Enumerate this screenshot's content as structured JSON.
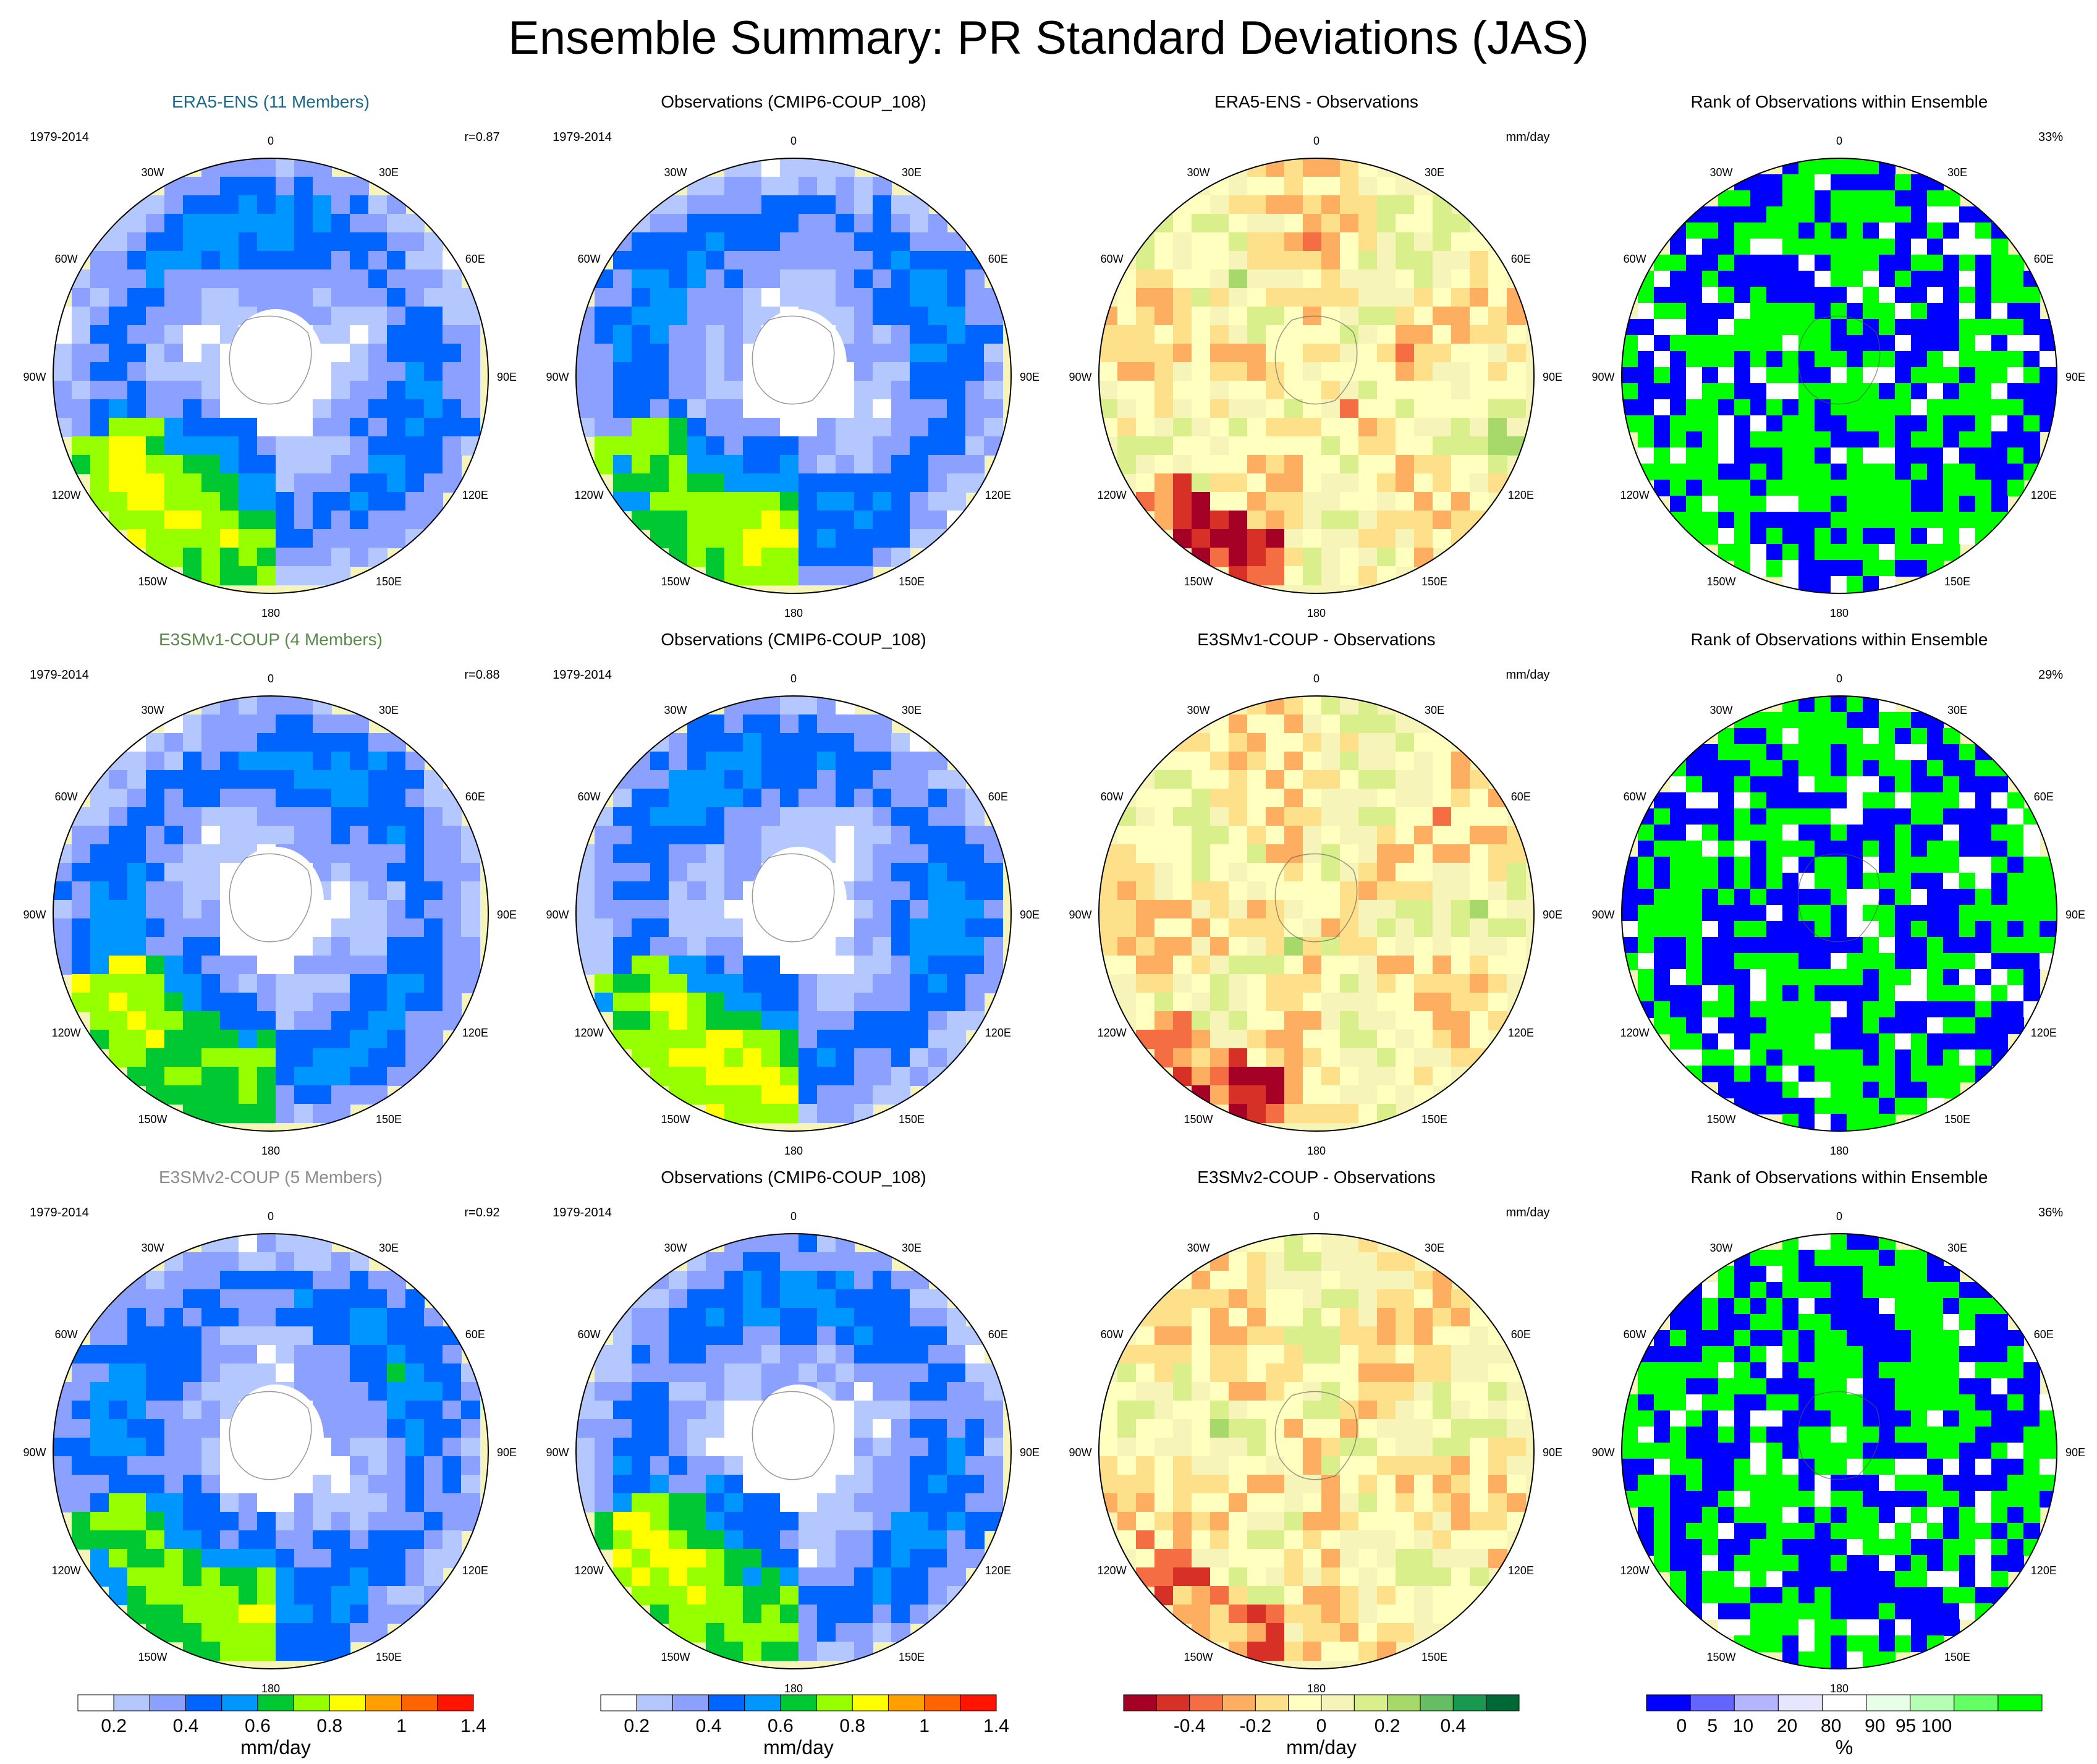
{
  "title": "Ensemble Summary: PR Standard Deviations (JAS)",
  "longitude_labels": [
    "0",
    "30E",
    "60E",
    "90E",
    "120E",
    "150E",
    "180",
    "150W",
    "120W",
    "90W",
    "60W",
    "30W"
  ],
  "colors": {
    "ensemble_header_0": "#1a6b8a",
    "ensemble_header_1": "#5a8a4a",
    "ensemble_header_2": "#8c8c8c"
  },
  "chart_data": [
    {
      "type": "heatmap",
      "row": 0,
      "col": 0,
      "title": "ERA5-ENS (11 Members)",
      "title_color": "#1a6b8a",
      "left_note": "1979-2014",
      "right_note": "r=0.87",
      "field": "std"
    },
    {
      "type": "heatmap",
      "row": 0,
      "col": 1,
      "title": "Observations (CMIP6-COUP_108)",
      "left_note": "1979-2014",
      "right_note": "",
      "field": "std"
    },
    {
      "type": "heatmap",
      "row": 0,
      "col": 2,
      "title": "ERA5-ENS - Observations",
      "left_note": "",
      "right_note": "mm/day",
      "field": "diff"
    },
    {
      "type": "heatmap",
      "row": 0,
      "col": 3,
      "title": "Rank of Observations within Ensemble",
      "left_note": "",
      "right_note": "33%",
      "field": "rank"
    },
    {
      "type": "heatmap",
      "row": 1,
      "col": 0,
      "title": "E3SMv1-COUP (4 Members)",
      "title_color": "#5a8a4a",
      "left_note": "1979-2014",
      "right_note": "r=0.88",
      "field": "std"
    },
    {
      "type": "heatmap",
      "row": 1,
      "col": 1,
      "title": "Observations (CMIP6-COUP_108)",
      "left_note": "1979-2014",
      "right_note": "",
      "field": "std"
    },
    {
      "type": "heatmap",
      "row": 1,
      "col": 2,
      "title": "E3SMv1-COUP - Observations",
      "left_note": "",
      "right_note": "mm/day",
      "field": "diff"
    },
    {
      "type": "heatmap",
      "row": 1,
      "col": 3,
      "title": "Rank of Observations within Ensemble",
      "left_note": "",
      "right_note": "29%",
      "field": "rank"
    },
    {
      "type": "heatmap",
      "row": 2,
      "col": 0,
      "title": "E3SMv2-COUP (5 Members)",
      "title_color": "#8c8c8c",
      "left_note": "1979-2014",
      "right_note": "r=0.92",
      "field": "std"
    },
    {
      "type": "heatmap",
      "row": 2,
      "col": 1,
      "title": "Observations (CMIP6-COUP_108)",
      "left_note": "1979-2014",
      "right_note": "",
      "field": "std"
    },
    {
      "type": "heatmap",
      "row": 2,
      "col": 2,
      "title": "E3SMv2-COUP - Observations",
      "left_note": "",
      "right_note": "mm/day",
      "field": "diff"
    },
    {
      "type": "heatmap",
      "row": 2,
      "col": 3,
      "title": "Rank of Observations within Ensemble",
      "left_note": "",
      "right_note": "36%",
      "field": "rank"
    }
  ],
  "colorbars": [
    {
      "col": 0,
      "label": "mm/day",
      "colors": [
        "#ffffff",
        "#b4c8ff",
        "#8ca0ff",
        "#0064ff",
        "#0096ff",
        "#00c832",
        "#96ff00",
        "#ffff00",
        "#ffa000",
        "#ff6400",
        "#ff1400"
      ],
      "ticks": [
        "0.2",
        "0.4",
        "0.6",
        "0.8",
        "1",
        "1.4"
      ],
      "tick_at": [
        1,
        3,
        5,
        7,
        9,
        11
      ]
    },
    {
      "col": 1,
      "label": "mm/day",
      "colors": [
        "#ffffff",
        "#b4c8ff",
        "#8ca0ff",
        "#0064ff",
        "#0096ff",
        "#00c832",
        "#96ff00",
        "#ffff00",
        "#ffa000",
        "#ff6400",
        "#ff1400"
      ],
      "ticks": [
        "0.2",
        "0.4",
        "0.6",
        "0.8",
        "1",
        "1.4"
      ],
      "tick_at": [
        1,
        3,
        5,
        7,
        9,
        11
      ]
    },
    {
      "col": 2,
      "label": "mm/day",
      "colors": [
        "#a50026",
        "#d73027",
        "#f46d43",
        "#fdae61",
        "#fee08b",
        "#ffffbf",
        "#f6f4b8",
        "#d9ef8b",
        "#a6d96a",
        "#66bd63",
        "#1a9850",
        "#006837"
      ],
      "ticks": [
        "-0.4",
        "-0.2",
        "0",
        "0.2",
        "0.4"
      ],
      "tick_at": [
        2,
        4,
        6,
        8,
        10
      ]
    },
    {
      "col": 3,
      "label": "%",
      "colors": [
        "#0000ff",
        "#6464ff",
        "#b4b4ff",
        "#e6e6ff",
        "#ffffff",
        "#e6ffe6",
        "#b4ffb4",
        "#64ff64",
        "#00ff00"
      ],
      "ticks": [
        "0",
        "5",
        "10",
        "20",
        "80",
        "90",
        "95",
        "100"
      ],
      "tick_at": [
        0.8,
        1.5,
        2.2,
        3.2,
        4.2,
        5.2,
        5.9,
        6.6
      ]
    }
  ]
}
